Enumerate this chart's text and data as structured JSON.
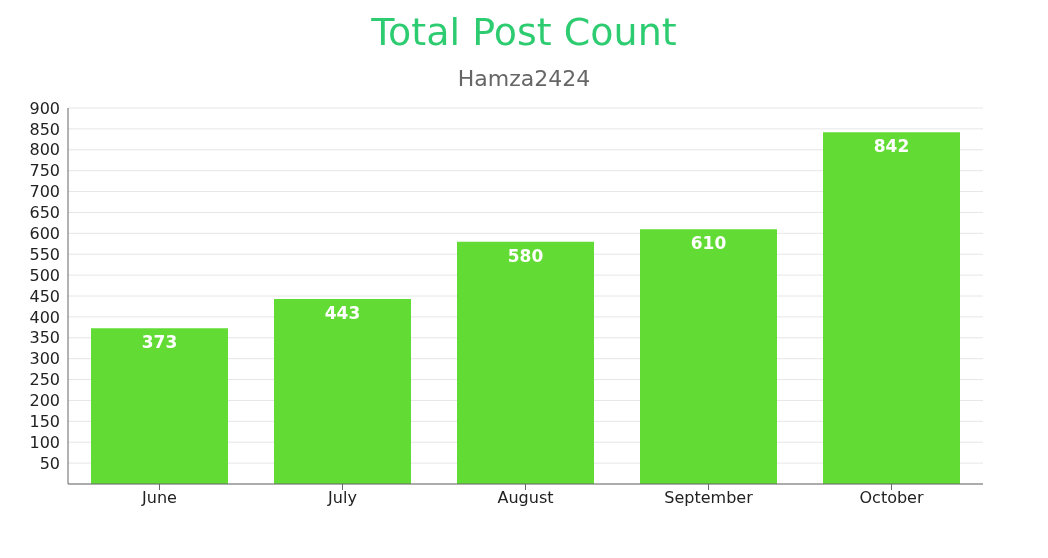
{
  "chart_data": {
    "type": "bar",
    "title": "Total Post Count",
    "subtitle": "Hamza2424",
    "categories": [
      "June",
      "July",
      "August",
      "September",
      "October"
    ],
    "values": [
      373,
      443,
      580,
      610,
      842
    ],
    "color": "#62dc34",
    "ylim": [
      0,
      900
    ],
    "yticks": [
      {
        "value": 0,
        "label": null
      },
      50,
      100,
      150,
      200,
      250,
      300,
      350,
      400,
      450,
      500,
      550,
      600,
      650,
      700,
      750,
      800,
      850,
      900
    ],
    "grid": "y",
    "data_labels": true,
    "legend": false
  }
}
